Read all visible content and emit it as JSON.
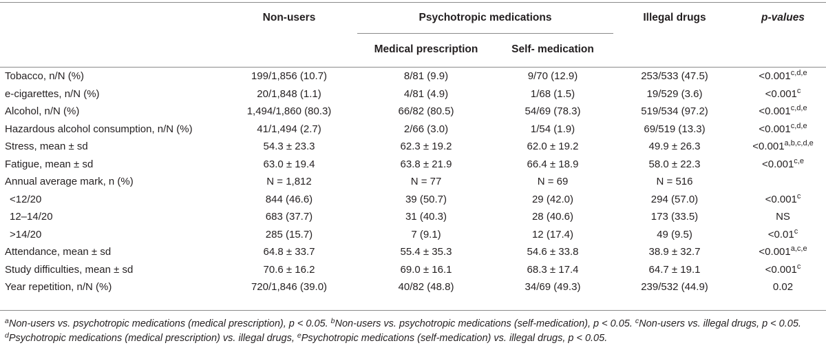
{
  "headers": {
    "non_users": "Non-users",
    "psychotropic": "Psychotropic medications",
    "illegal": "Illegal drugs",
    "pvalues": "p-values",
    "medical_prescription": "Medical prescription",
    "self_medication": "Self- medication"
  },
  "rows": [
    {
      "label": "Tobacco, n/N (%)",
      "non_users": "199/1,856 (10.7)",
      "medical": "8/81 (9.9)",
      "self": "9/70 (12.9)",
      "illegal": "253/533 (47.5)",
      "p": "<0.001",
      "p_sup": "c,d,e"
    },
    {
      "label": "e-cigarettes, n/N (%)",
      "non_users": "20/1,848 (1.1)",
      "medical": "4/81 (4.9)",
      "self": "1/68 (1.5)",
      "illegal": "19/529 (3.6)",
      "p": "<0.001",
      "p_sup": "c"
    },
    {
      "label": "Alcohol, n/N (%)",
      "non_users": "1,494/1,860 (80.3)",
      "medical": "66/82 (80.5)",
      "self": "54/69 (78.3)",
      "illegal": "519/534 (97.2)",
      "p": "<0.001",
      "p_sup": "c,d,e"
    },
    {
      "label": "Hazardous alcohol consumption, n/N (%)",
      "non_users": "41/1,494 (2.7)",
      "medical": "2/66 (3.0)",
      "self": "1/54 (1.9)",
      "illegal": "69/519 (13.3)",
      "p": "<0.001",
      "p_sup": "c,d,e"
    },
    {
      "label": "Stress, mean ± sd",
      "non_users": "54.3 ± 23.3",
      "medical": "62.3 ± 19.2",
      "self": "62.0 ± 19.2",
      "illegal": "49.9 ± 26.3",
      "p": "<0.001",
      "p_sup": "a,b,c,d,e"
    },
    {
      "label": "Fatigue, mean ± sd",
      "non_users": "63.0 ± 19.4",
      "medical": "63.8 ± 21.9",
      "self": "66.4 ± 18.9",
      "illegal": "58.0 ± 22.3",
      "p": "<0.001",
      "p_sup": "c,e"
    },
    {
      "label": "Annual average mark, n (%)",
      "non_users": "N = 1,812",
      "medical": "N = 77",
      "self": "N = 69",
      "illegal": "N = 516",
      "p": "",
      "p_sup": ""
    },
    {
      "label": "<12/20",
      "non_users": "844 (46.6)",
      "medical": "39 (50.7)",
      "self": "29 (42.0)",
      "illegal": "294 (57.0)",
      "p": "<0.001",
      "p_sup": "c",
      "indent": true
    },
    {
      "label": "12–14/20",
      "non_users": "683 (37.7)",
      "medical": "31 (40.3)",
      "self": "28 (40.6)",
      "illegal": "173 (33.5)",
      "p": "NS",
      "p_sup": "",
      "indent": true
    },
    {
      "label": ">14/20",
      "non_users": "285 (15.7)",
      "medical": "7 (9.1)",
      "self": "12 (17.4)",
      "illegal": "49 (9.5)",
      "p": "<0.01",
      "p_sup": "c",
      "indent": true
    },
    {
      "label": "Attendance, mean ± sd",
      "non_users": "64.8 ± 33.7",
      "medical": "55.4 ± 35.3",
      "self": "54.6 ± 33.8",
      "illegal": "38.9 ± 32.7",
      "p": "<0.001",
      "p_sup": "a,c,e"
    },
    {
      "label": "Study difficulties, mean ± sd",
      "non_users": "70.6 ± 16.2",
      "medical": "69.0 ± 16.1",
      "self": "68.3 ± 17.4",
      "illegal": "64.7 ± 19.1",
      "p": "<0.001",
      "p_sup": "c"
    },
    {
      "label": "Year repetition, n/N (%)",
      "non_users": "720/1,846 (39.0)",
      "medical": "40/82 (48.8)",
      "self": "34/69 (49.3)",
      "illegal": "239/532 (44.9)",
      "p": "0.02",
      "p_sup": ""
    }
  ],
  "footnote": {
    "a_sup": "a",
    "a_text": "Non-users vs. psychotropic medications (medical prescription), p < 0.05.",
    "b_sup": "b",
    "b_text": "Non-users vs. psychotropic medications (self-medication), p < 0.05.",
    "c_sup": "c",
    "c_text": "Non-users vs. illegal drugs, p < 0.05.",
    "d_sup": "d",
    "d_text": "Psychotropic medications (medical prescription) vs. illegal drugs,",
    "e_sup": "e",
    "e_text": "Psychotropic medications (self-medication) vs. illegal drugs, p < 0.05."
  }
}
